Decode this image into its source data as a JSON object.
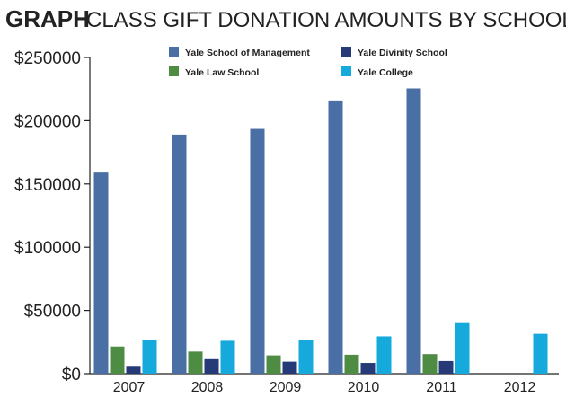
{
  "header": {
    "graph_label": "GRAPH",
    "title": "CLASS GIFT DONATION AMOUNTS BY SCHOOL, YEAR"
  },
  "chart_data": {
    "type": "bar",
    "title": "CLASS GIFT DONATION AMOUNTS BY SCHOOL, YEAR",
    "xlabel": "",
    "ylabel": "",
    "categories": [
      "2007",
      "2008",
      "2009",
      "2010",
      "2011",
      "2012"
    ],
    "ylim": [
      0,
      250000
    ],
    "yticks": [
      0,
      50000,
      100000,
      150000,
      200000,
      250000
    ],
    "ytick_labels": [
      "$0",
      "$50000",
      "$100000",
      "$150000",
      "$200000",
      "$250000"
    ],
    "grid": false,
    "legend_position": "top",
    "series": [
      {
        "name": "Yale School of Management",
        "color": "#4a6fa5",
        "values": [
          159000,
          189000,
          193500,
          216000,
          225500,
          null
        ]
      },
      {
        "name": "Yale Law School",
        "color": "#4e8c44",
        "values": [
          21500,
          17500,
          14500,
          15000,
          15500,
          null
        ]
      },
      {
        "name": "Yale Divinity School",
        "color": "#263a78",
        "values": [
          5500,
          11500,
          9500,
          8500,
          10000,
          null
        ]
      },
      {
        "name": "Yale College",
        "color": "#16a9dc",
        "values": [
          27000,
          26000,
          27000,
          29500,
          40000,
          31500
        ]
      }
    ]
  }
}
